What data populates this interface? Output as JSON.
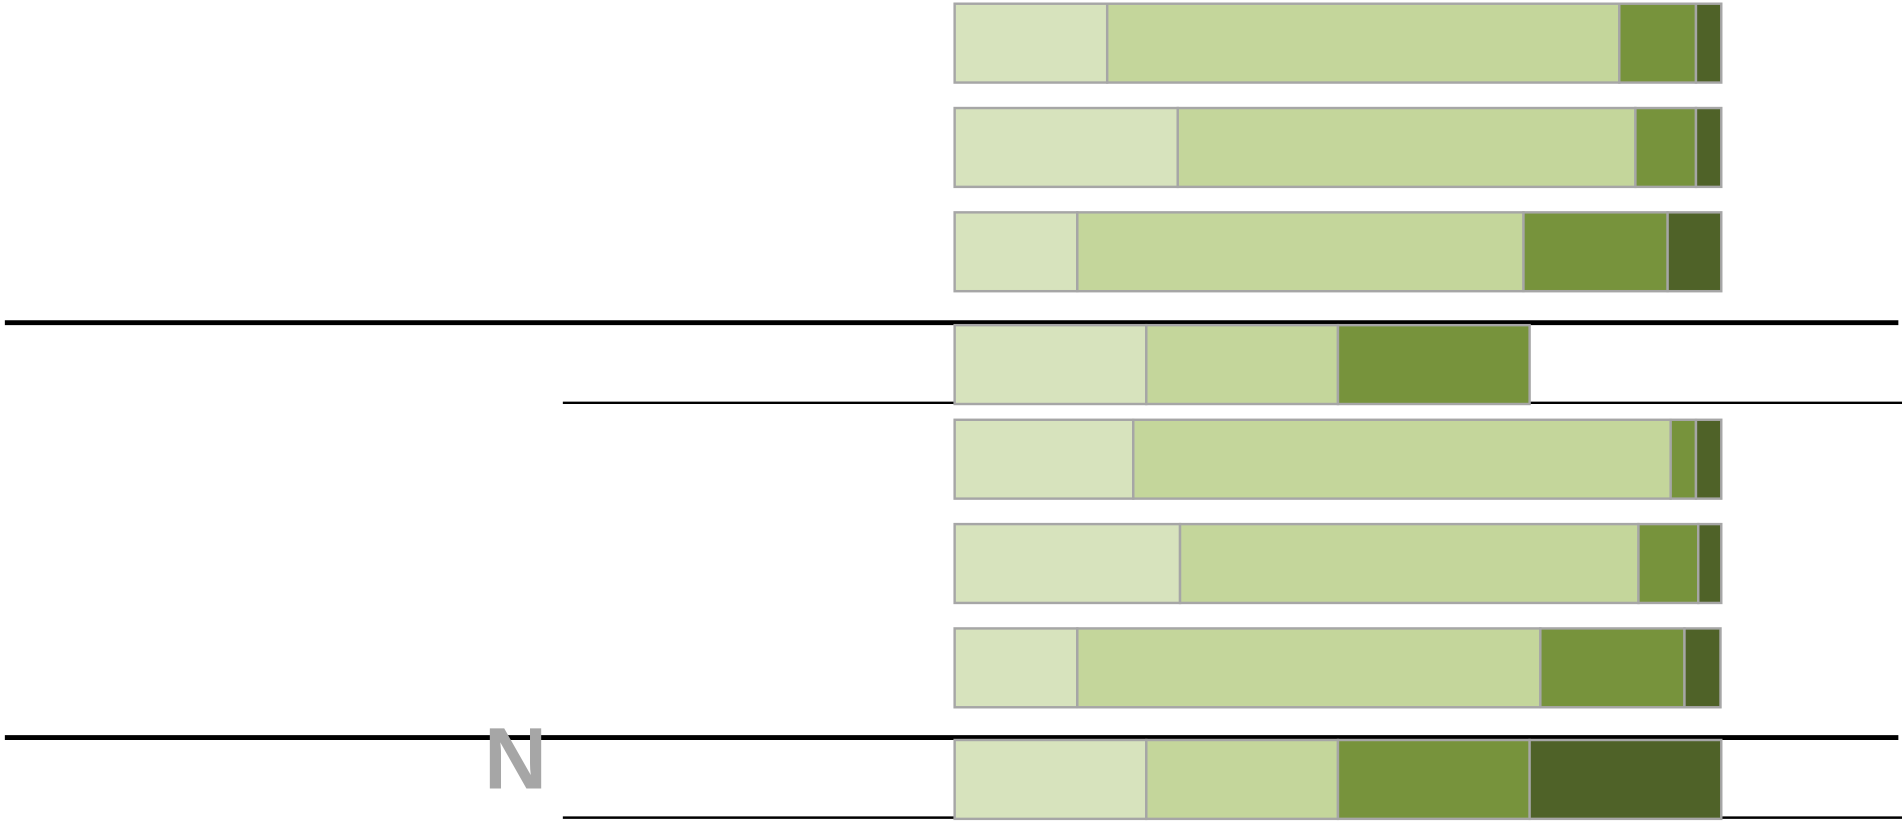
{
  "chart_data": {
    "type": "stacked-bar",
    "orientation": "horizontal",
    "annotation": "N",
    "categories": [
      null,
      null,
      null,
      null,
      null,
      null,
      null,
      null
    ],
    "xlim": [
      0,
      100
    ],
    "series": [
      {
        "color": "#d7e3bd",
        "values": [
          19.9,
          29.1,
          16.0,
          25,
          23.3,
          29.4,
          16.0,
          25
        ]
      },
      {
        "color": "#c4d69b",
        "values": [
          66.8,
          59.7,
          58.2,
          25,
          70.1,
          59.8,
          60.4,
          25
        ]
      },
      {
        "color": "#77933c",
        "values": [
          10.0,
          7.9,
          18.8,
          25,
          3.3,
          7.8,
          18.8,
          25
        ]
      },
      {
        "color": "#4f6228",
        "values": [
          3.3,
          3.3,
          7.0,
          0,
          3.3,
          3.0,
          4.7,
          25
        ]
      }
    ]
  }
}
